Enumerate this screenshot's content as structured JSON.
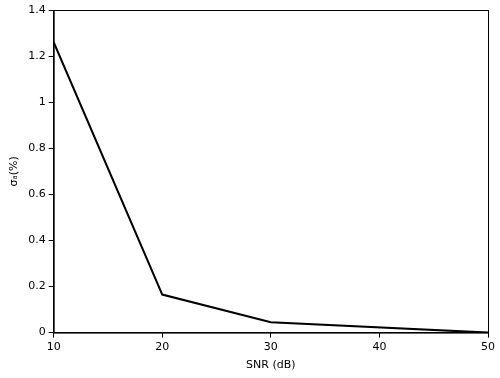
{
  "chart_data": {
    "type": "line",
    "x_label": "SNR (dB)",
    "y_label": "σₐ(%)",
    "x": [
      10,
      20,
      30,
      50
    ],
    "values": [
      1.26,
      0.165,
      0.045,
      0.0
    ],
    "color": "#000000",
    "xlim": [
      10,
      50
    ],
    "xticks": [
      10,
      20,
      30,
      40,
      50
    ],
    "ylim": [
      0,
      1.4
    ],
    "yticks": [
      0,
      0.2,
      0.4,
      0.6,
      0.8,
      1,
      1.2,
      1.4
    ],
    "grid": false
  }
}
